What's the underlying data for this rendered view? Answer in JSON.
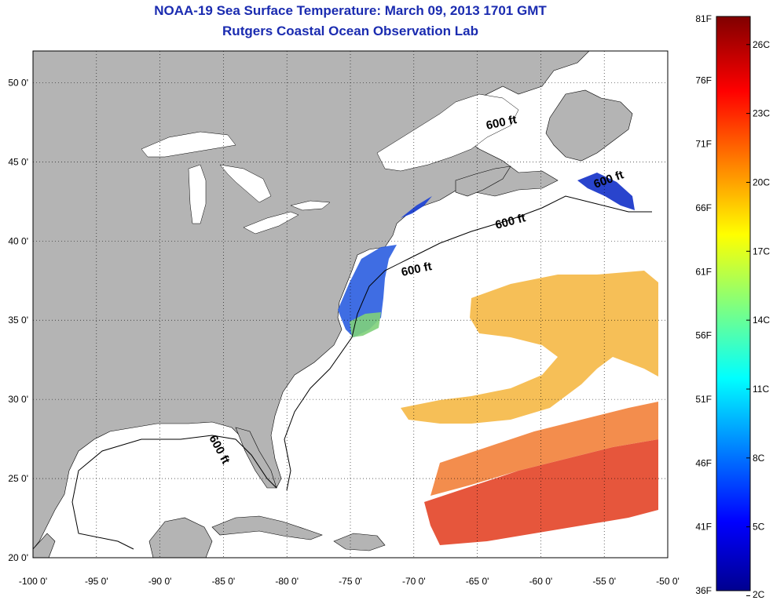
{
  "header": {
    "title": "NOAA-19 Sea Surface Temperature:  March 09, 2013 1701 GMT",
    "subtitle": "Rutgers Coastal Ocean Observation Lab"
  },
  "map": {
    "lon_range": [
      -100,
      -50
    ],
    "lat_range": [
      20,
      52
    ],
    "lon_ticks": [
      "-100 0'",
      "-95 0'",
      "-90 0'",
      "-85 0'",
      "-80 0'",
      "-75 0'",
      "-70 0'",
      "-65 0'",
      "-60 0'",
      "-55 0'",
      "-50 0'"
    ],
    "lat_ticks": [
      "20 0'",
      "25 0'",
      "30 0'",
      "35 0'",
      "40 0'",
      "45 0'",
      "50 0'"
    ],
    "grid": "dotted",
    "land_color": "#b4b4b4",
    "ocean_color": "#ffffff",
    "contour_labels": [
      "600 ft",
      "600 ft",
      "600 ft",
      "600 ft",
      "600 ft"
    ]
  },
  "colorbar": {
    "fahrenheit_labels": [
      "81F",
      "76F",
      "71F",
      "66F",
      "61F",
      "56F",
      "51F",
      "46F",
      "41F",
      "36F"
    ],
    "celsius_labels": [
      "26C",
      "23C",
      "20C",
      "17C",
      "14C",
      "11C",
      "8C",
      "5C",
      "2C"
    ],
    "colormap": "jet",
    "min_label": "36F",
    "max_label": "81F"
  }
}
